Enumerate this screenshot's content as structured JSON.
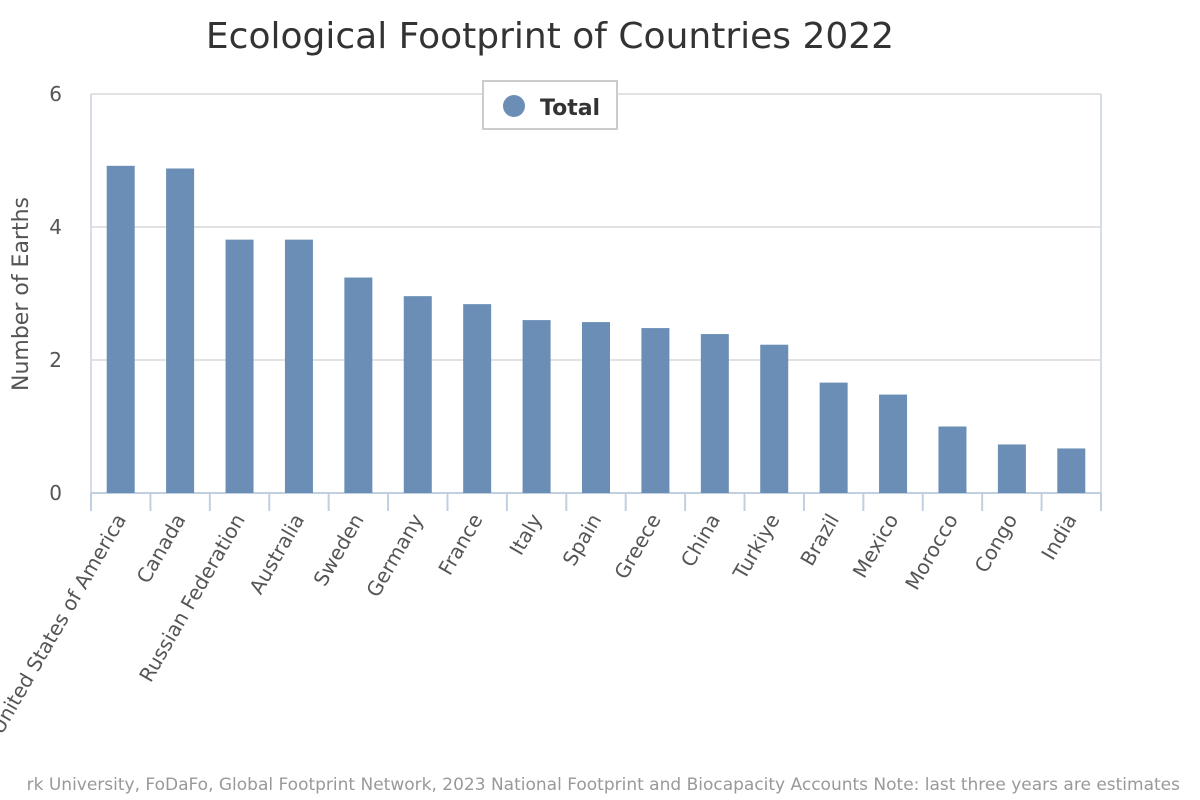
{
  "chart_data": {
    "type": "bar",
    "title": "Ecological Footprint of Countries 2022",
    "xlabel": "",
    "ylabel": "Number of Earths",
    "ylim": [
      0,
      6
    ],
    "yticks": [
      0,
      2,
      4,
      6
    ],
    "grid": true,
    "legend_position": "top",
    "categories": [
      "United States of America",
      "Canada",
      "Russian Federation",
      "Australia",
      "Sweden",
      "Germany",
      "France",
      "Italy",
      "Spain",
      "Greece",
      "China",
      "Turkiye",
      "Brazil",
      "Mexico",
      "Morocco",
      "Congo",
      "India"
    ],
    "series": [
      {
        "name": "Total",
        "color": "#6a8eb5",
        "values": [
          4.92,
          4.88,
          3.81,
          3.81,
          3.24,
          2.96,
          2.84,
          2.6,
          2.57,
          2.48,
          2.39,
          2.23,
          1.66,
          1.48,
          1.0,
          0.73,
          0.67
        ]
      }
    ],
    "credits": "rk University, FoDaFo, Global Footprint Network, 2023 National Footprint and Biocapacity Accounts Note: last three years are estimates"
  }
}
